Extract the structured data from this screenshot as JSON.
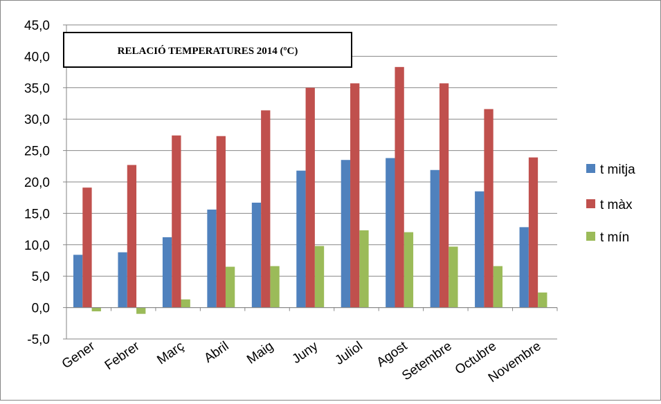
{
  "chart_data": {
    "type": "bar",
    "title": "RELACIÓ TEMPERATURES 2014 (ºC)",
    "xlabel": "",
    "ylabel": "",
    "ylim": [
      -5,
      45
    ],
    "yticks": [
      -5,
      0,
      5,
      10,
      15,
      20,
      25,
      30,
      35,
      40,
      45
    ],
    "ytick_labels": [
      "-5,0",
      "0,0",
      "5,0",
      "10,0",
      "15,0",
      "20,0",
      "25,0",
      "30,0",
      "35,0",
      "40,0",
      "45,0"
    ],
    "grid": true,
    "legend_position": "right",
    "categories": [
      "Gener",
      "Febrer",
      "Març",
      "Abril",
      "Maig",
      "Juny",
      "Juliol",
      "Agost",
      "Setembre",
      "Octubre",
      "Novembre"
    ],
    "series": [
      {
        "name": "t mitja",
        "color": "#4f81bd",
        "values": [
          8.4,
          8.8,
          11.2,
          15.6,
          16.7,
          21.8,
          23.5,
          23.8,
          21.9,
          18.5,
          12.8
        ]
      },
      {
        "name": "t màx",
        "color": "#c0504d",
        "values": [
          19.1,
          22.7,
          27.4,
          27.3,
          31.4,
          35.0,
          35.7,
          38.3,
          35.7,
          31.6,
          23.9
        ]
      },
      {
        "name": "t mín",
        "color": "#9bbb59",
        "values": [
          -0.6,
          -1.0,
          1.3,
          6.5,
          6.6,
          9.8,
          12.3,
          12.0,
          9.7,
          6.6,
          2.4
        ]
      }
    ]
  }
}
